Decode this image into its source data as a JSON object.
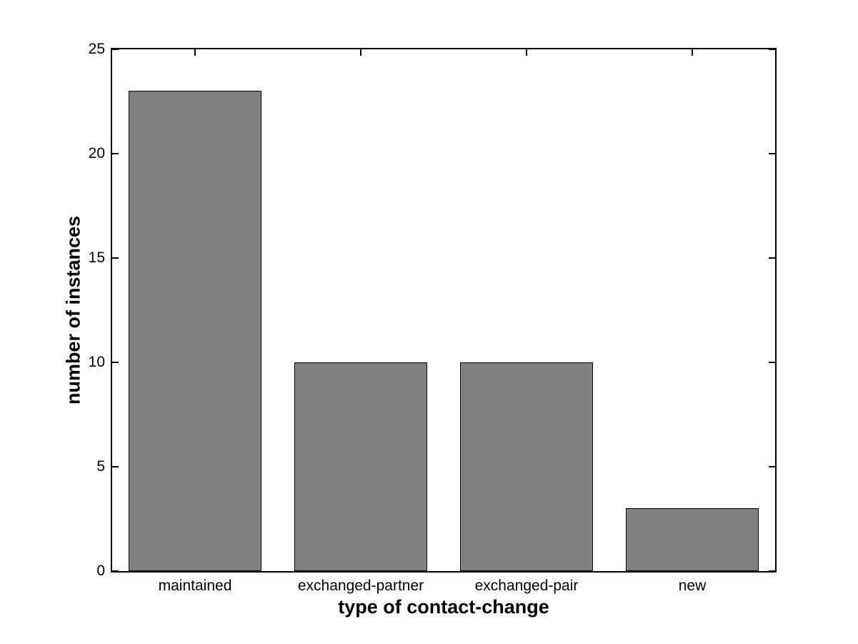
{
  "figure": {
    "background": "#ffffff"
  },
  "chart_data": {
    "type": "bar",
    "title": "",
    "categories": [
      "maintained",
      "exchanged-partner",
      "exchanged-pair",
      "new"
    ],
    "values": [
      23,
      10,
      10,
      3
    ],
    "xlabel": "type of contact-change",
    "ylabel": "number of instances",
    "ylim": [
      0,
      25
    ],
    "yticks": [
      0,
      5,
      10,
      15,
      20,
      25
    ],
    "ytick_labels": [
      "0",
      "5",
      "10",
      "15",
      "20",
      "25"
    ],
    "bar_width_fraction": 0.8,
    "bar_color": "#808080",
    "bar_edge_color": "#000000",
    "axis_color": "#000000",
    "text_color": "#000000",
    "grid": false,
    "legend": null,
    "layout": {
      "box_on": true,
      "ticks_direction": "in",
      "ticks_mirrored": true
    }
  }
}
